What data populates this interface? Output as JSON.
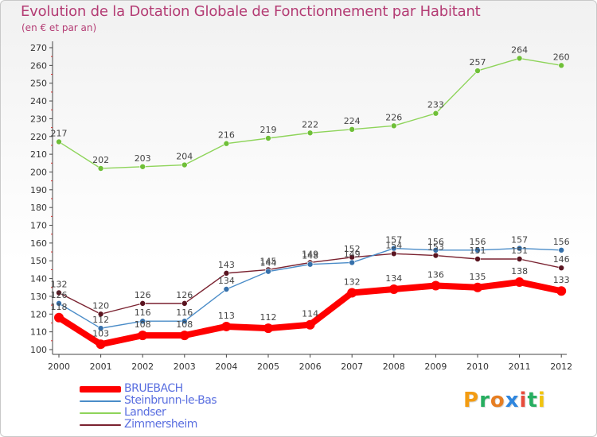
{
  "header": {
    "title": "Evolution de la Dotation Globale de Fonctionnement par Habitant",
    "subtitle": "(en € et par an)"
  },
  "brand": {
    "letters": [
      "P",
      "r",
      "o",
      "x",
      "i",
      "t",
      "i"
    ],
    "colors": [
      "#f39c12",
      "#27ae60",
      "#e67e22",
      "#2e86de",
      "#e74c3c",
      "#27ae60",
      "#f1c40f"
    ]
  },
  "chart_data": {
    "type": "line",
    "title": "Evolution de la Dotation Globale de Fonctionnement par Habitant",
    "subtitle": "(en € et par an)",
    "xlabel": "",
    "ylabel": "",
    "ylim": [
      100,
      270
    ],
    "yticks": [
      100,
      110,
      120,
      130,
      140,
      150,
      160,
      170,
      180,
      190,
      200,
      210,
      220,
      230,
      240,
      250,
      260,
      270
    ],
    "grid": false,
    "legend_position": "bottom-left",
    "categories": [
      "2000",
      "2001",
      "2002",
      "2003",
      "2004",
      "2005",
      "2006",
      "2007",
      "2008",
      "2009",
      "2010",
      "2011",
      "2012"
    ],
    "series": [
      {
        "name": "BRUEBACH",
        "color": "#ff0000",
        "values": [
          118,
          103,
          108,
          108,
          113,
          112,
          114,
          132,
          134,
          136,
          135,
          138,
          133
        ]
      },
      {
        "name": "Steinbrunn-le-Bas",
        "color": "#4a8cc8",
        "values": [
          126,
          112,
          116,
          116,
          134,
          144,
          148,
          149,
          157,
          156,
          156,
          157,
          156
        ]
      },
      {
        "name": "Landser",
        "color": "#8ed45a",
        "values": [
          217,
          202,
          203,
          204,
          216,
          219,
          222,
          224,
          226,
          233,
          257,
          264,
          260
        ]
      },
      {
        "name": "Zimmersheim",
        "color": "#7a2230",
        "values": [
          132,
          120,
          126,
          126,
          143,
          145,
          149,
          152,
          154,
          153,
          151,
          151,
          146
        ]
      }
    ]
  }
}
